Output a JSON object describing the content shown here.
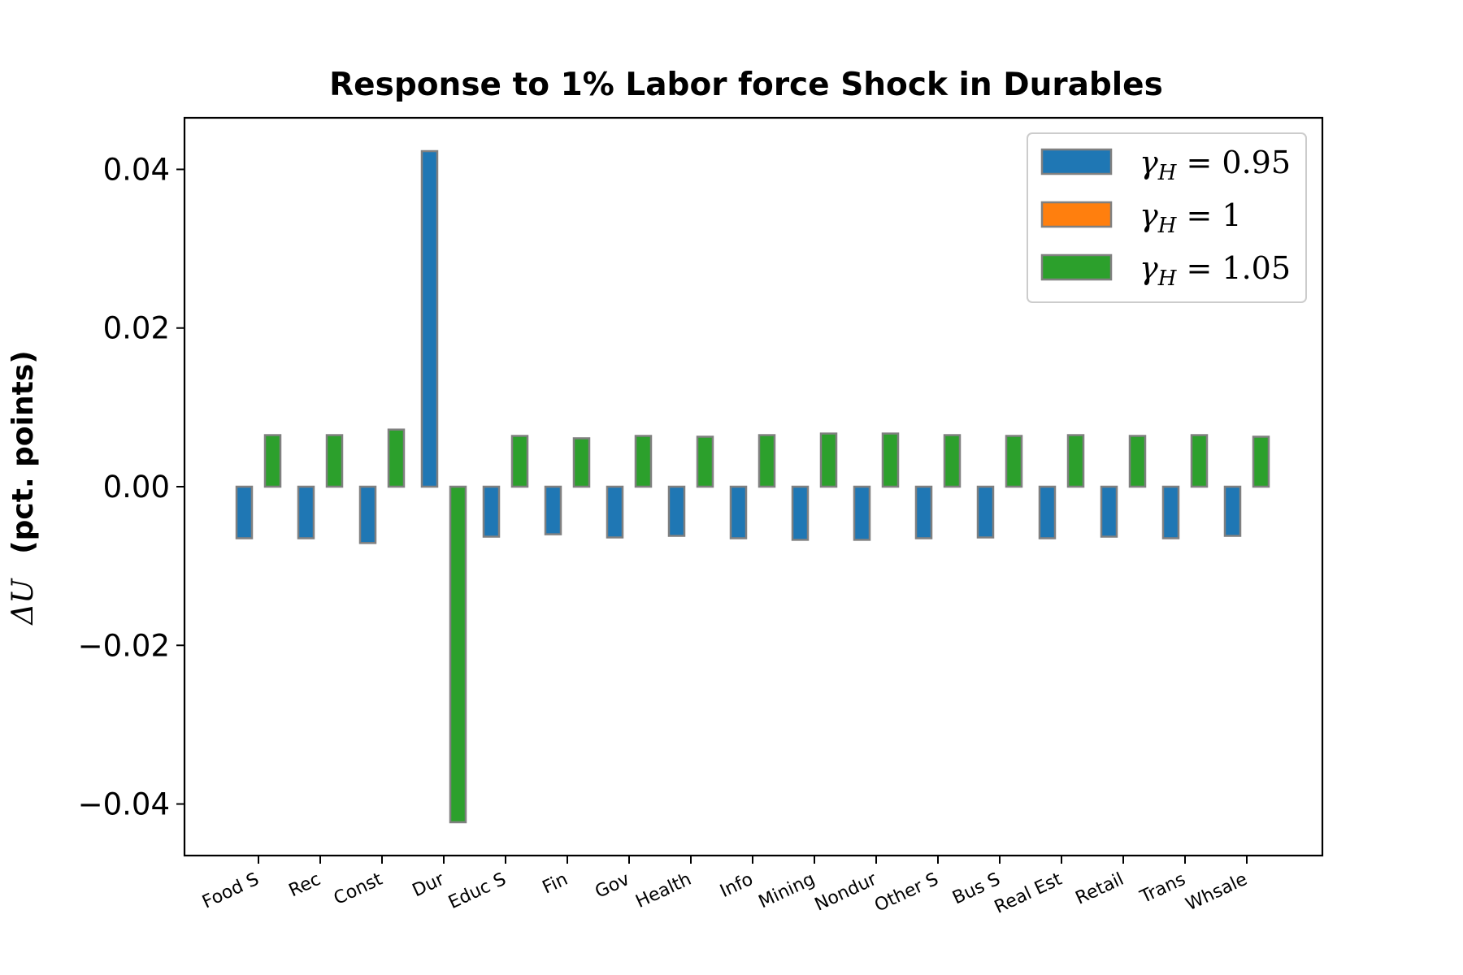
{
  "chart_data": {
    "type": "bar",
    "title": "Response to 1% Labor force Shock in Durables",
    "xlabel": "",
    "ylabel": {
      "symbol": "ΔU",
      "text": "(pct. points)"
    },
    "ylim": [
      -0.0465,
      0.0465
    ],
    "yticks": [
      {
        "value": 0.04,
        "label": "0.04"
      },
      {
        "value": 0.02,
        "label": "0.02"
      },
      {
        "value": 0.0,
        "label": "0.00"
      },
      {
        "value": -0.02,
        "label": "−0.02"
      },
      {
        "value": -0.04,
        "label": "−0.04"
      }
    ],
    "categories": [
      "Food S",
      "Rec",
      "Const",
      "Dur",
      "Educ S",
      "Fin",
      "Gov",
      "Health",
      "Info",
      "Mining",
      "Nondur",
      "Other S",
      "Bus S",
      "Real Est",
      "Retail",
      "Trans",
      "Whsale"
    ],
    "series": [
      {
        "name": "γ_H = 0.95",
        "legend": {
          "base": "γ",
          "sub": "H",
          "rest": " = 0.95"
        },
        "color": "#1f77b4",
        "values": [
          -0.0065,
          -0.0065,
          -0.0071,
          0.0423,
          -0.0063,
          -0.006,
          -0.0064,
          -0.0062,
          -0.0065,
          -0.0067,
          -0.0067,
          -0.0065,
          -0.0064,
          -0.0065,
          -0.0063,
          -0.0065,
          -0.0062
        ]
      },
      {
        "name": "γ_H = 1",
        "legend": {
          "base": "γ",
          "sub": "H",
          "rest": " = 1"
        },
        "color": "#ff7f0e",
        "values": [
          0,
          0,
          0,
          0,
          0,
          0,
          0,
          0,
          0,
          0,
          0,
          0,
          0,
          0,
          0,
          0,
          0
        ]
      },
      {
        "name": "γ_H = 1.05",
        "legend": {
          "base": "γ",
          "sub": "H",
          "rest": " = 1.05"
        },
        "color": "#2ca02c",
        "values": [
          0.0065,
          0.0065,
          0.0072,
          -0.0423,
          0.0064,
          0.0061,
          0.0064,
          0.0063,
          0.0065,
          0.0067,
          0.0067,
          0.0065,
          0.0064,
          0.0065,
          0.0064,
          0.0065,
          0.0063
        ]
      }
    ],
    "bar_edge_color": "#808080",
    "legend_position": "top-right",
    "grid": false
  }
}
